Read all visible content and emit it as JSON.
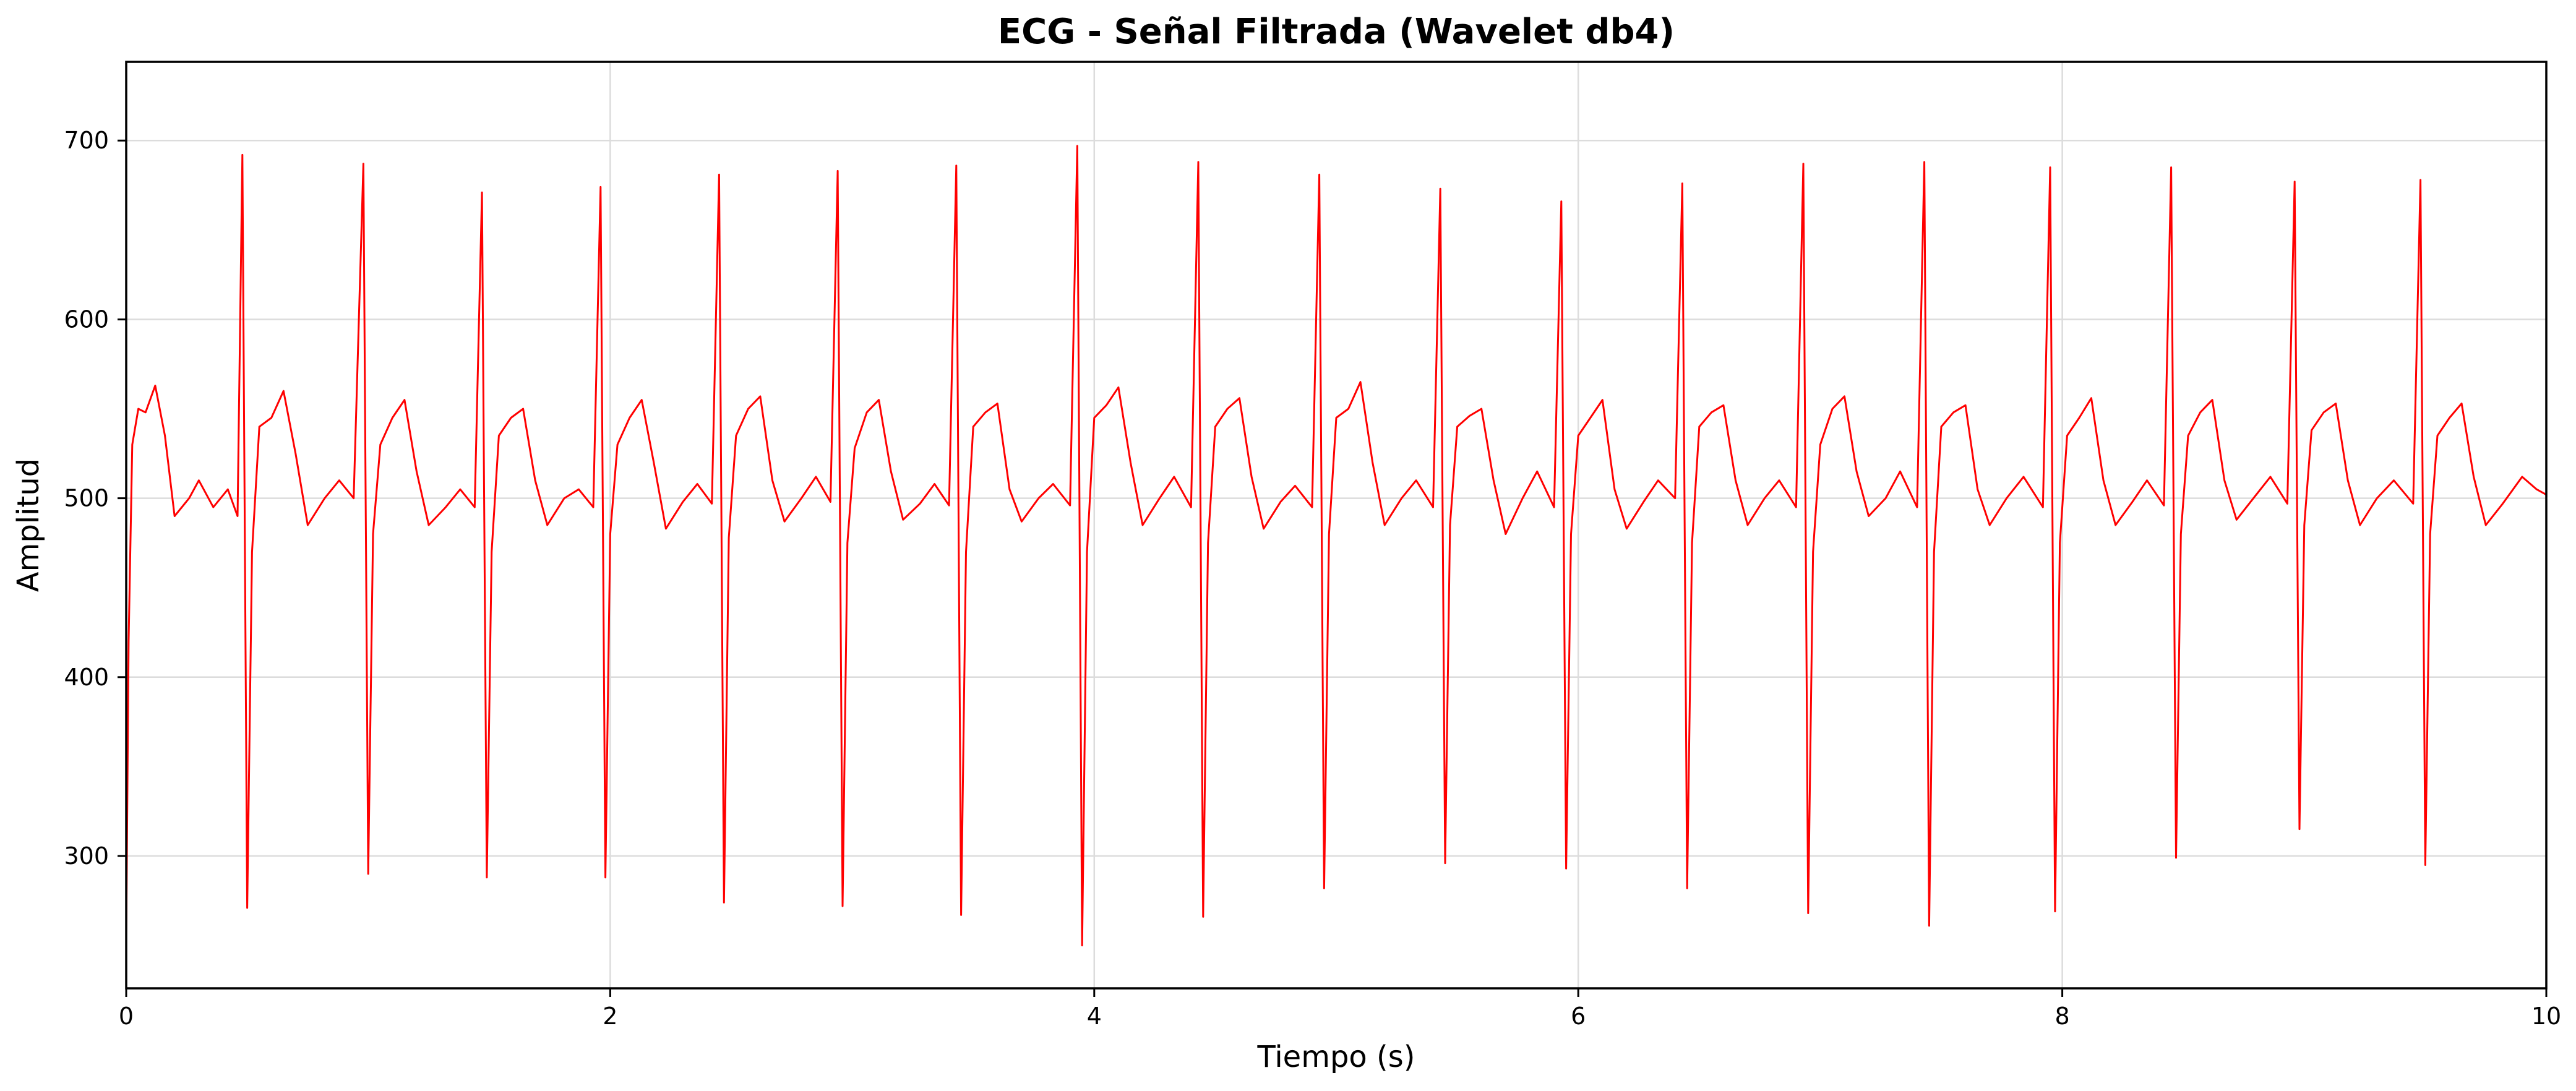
{
  "chart_data": {
    "type": "line",
    "title": "ECG - Señal Filtrada (Wavelet db4)",
    "xlabel": "Tiempo (s)",
    "ylabel": "Amplitud",
    "xlim": [
      0,
      10
    ],
    "ylim": [
      226,
      744
    ],
    "x_ticks": [
      0,
      2,
      4,
      6,
      8,
      10
    ],
    "y_ticks": [
      300,
      400,
      500,
      600,
      700
    ],
    "grid": true,
    "legend": "none",
    "series": [
      {
        "color": "#ff0000",
        "line_width": 3,
        "r_peaks_time_s": [
          0.48,
          0.98,
          1.47,
          1.96,
          2.45,
          2.94,
          3.43,
          3.93,
          4.43,
          4.93,
          5.43,
          5.93,
          6.43,
          6.93,
          7.43,
          7.95,
          8.45,
          8.96,
          9.48
        ],
        "r_peaks_amplitude": [
          692,
          687,
          671,
          674,
          681,
          683,
          686,
          697,
          688,
          681,
          673,
          666,
          676,
          687,
          688,
          685,
          685,
          677,
          678
        ],
        "s_troughs_time_s": [
          0.5,
          1.0,
          1.49,
          1.98,
          2.47,
          2.96,
          3.45,
          3.95,
          4.45,
          4.95,
          5.45,
          5.95,
          6.45,
          6.95,
          7.45,
          7.97,
          8.47,
          8.98,
          9.5
        ],
        "s_troughs_amplitude": [
          271,
          290,
          288,
          288,
          274,
          272,
          267,
          250,
          266,
          282,
          296,
          293,
          282,
          268,
          261,
          269,
          299,
          315,
          295
        ],
        "x": [
          0,
          0.01,
          0.025,
          0.05,
          0.08,
          0.12,
          0.16,
          0.2,
          0.26,
          0.3,
          0.36,
          0.42,
          0.46,
          0.48,
          0.5,
          0.52,
          0.55,
          0.6,
          0.65,
          0.7,
          0.75,
          0.82,
          0.88,
          0.94,
          0.98,
          1.0,
          1.02,
          1.05,
          1.1,
          1.15,
          1.2,
          1.25,
          1.32,
          1.38,
          1.44,
          1.47,
          1.49,
          1.51,
          1.54,
          1.59,
          1.64,
          1.69,
          1.74,
          1.81,
          1.87,
          1.93,
          1.96,
          1.98,
          2.0,
          2.03,
          2.08,
          2.13,
          2.18,
          2.23,
          2.3,
          2.36,
          2.42,
          2.45,
          2.47,
          2.49,
          2.52,
          2.57,
          2.62,
          2.67,
          2.72,
          2.79,
          2.85,
          2.91,
          2.94,
          2.96,
          2.98,
          3.01,
          3.06,
          3.11,
          3.16,
          3.21,
          3.28,
          3.34,
          3.4,
          3.43,
          3.45,
          3.47,
          3.5,
          3.55,
          3.6,
          3.65,
          3.7,
          3.77,
          3.83,
          3.9,
          3.93,
          3.95,
          3.97,
          4.0,
          4.05,
          4.1,
          4.15,
          4.2,
          4.27,
          4.33,
          4.4,
          4.43,
          4.45,
          4.47,
          4.5,
          4.55,
          4.6,
          4.65,
          4.7,
          4.77,
          4.83,
          4.9,
          4.93,
          4.95,
          4.97,
          5.0,
          5.05,
          5.1,
          5.15,
          5.2,
          5.27,
          5.33,
          5.4,
          5.43,
          5.45,
          5.47,
          5.5,
          5.55,
          5.6,
          5.65,
          5.7,
          5.77,
          5.83,
          5.9,
          5.93,
          5.95,
          5.97,
          6.0,
          6.05,
          6.1,
          6.15,
          6.2,
          6.27,
          6.33,
          6.4,
          6.43,
          6.45,
          6.47,
          6.5,
          6.55,
          6.6,
          6.65,
          6.7,
          6.77,
          6.83,
          6.9,
          6.93,
          6.95,
          6.97,
          7.0,
          7.05,
          7.1,
          7.15,
          7.2,
          7.27,
          7.33,
          7.4,
          7.43,
          7.45,
          7.47,
          7.5,
          7.55,
          7.6,
          7.65,
          7.7,
          7.77,
          7.84,
          7.92,
          7.95,
          7.97,
          7.99,
          8.02,
          8.07,
          8.12,
          8.17,
          8.22,
          8.29,
          8.35,
          8.42,
          8.45,
          8.47,
          8.49,
          8.52,
          8.57,
          8.62,
          8.67,
          8.72,
          8.79,
          8.86,
          8.93,
          8.96,
          8.98,
          9.0,
          9.03,
          9.08,
          9.13,
          9.18,
          9.23,
          9.3,
          9.37,
          9.45,
          9.48,
          9.5,
          9.52,
          9.55,
          9.6,
          9.65,
          9.7,
          9.75,
          9.82,
          9.9,
          9.96,
          10.0
        ],
        "y": [
          255,
          420,
          530,
          550,
          548,
          563,
          535,
          490,
          500,
          510,
          495,
          505,
          490,
          692,
          271,
          470,
          540,
          545,
          560,
          525,
          485,
          500,
          510,
          500,
          687,
          290,
          480,
          530,
          545,
          555,
          515,
          485,
          495,
          505,
          495,
          671,
          288,
          470,
          535,
          545,
          550,
          510,
          485,
          500,
          505,
          495,
          674,
          288,
          480,
          530,
          545,
          555,
          520,
          483,
          498,
          508,
          497,
          681,
          274,
          478,
          535,
          550,
          557,
          510,
          487,
          500,
          512,
          498,
          683,
          272,
          475,
          528,
          548,
          555,
          515,
          488,
          497,
          508,
          496,
          686,
          267,
          470,
          540,
          548,
          553,
          505,
          487,
          500,
          508,
          496,
          697,
          250,
          470,
          545,
          552,
          562,
          520,
          485,
          500,
          512,
          495,
          688,
          266,
          475,
          540,
          550,
          556,
          512,
          483,
          498,
          507,
          495,
          681,
          282,
          480,
          545,
          550,
          565,
          520,
          485,
          500,
          510,
          495,
          673,
          296,
          485,
          540,
          546,
          550,
          510,
          480,
          500,
          515,
          495,
          666,
          293,
          480,
          535,
          545,
          555,
          505,
          483,
          498,
          510,
          500,
          676,
          282,
          475,
          540,
          548,
          552,
          510,
          485,
          500,
          510,
          495,
          687,
          268,
          470,
          530,
          550,
          557,
          515,
          490,
          500,
          515,
          495,
          688,
          261,
          470,
          540,
          548,
          552,
          505,
          485,
          500,
          512,
          495,
          685,
          269,
          475,
          535,
          545,
          556,
          510,
          485,
          498,
          510,
          496,
          685,
          299,
          480,
          535,
          548,
          555,
          510,
          488,
          500,
          512,
          497,
          677,
          315,
          485,
          538,
          548,
          553,
          510,
          485,
          500,
          510,
          497,
          678,
          295,
          480,
          535,
          545,
          553,
          512,
          485,
          497,
          512,
          505,
          502
        ]
      }
    ]
  }
}
